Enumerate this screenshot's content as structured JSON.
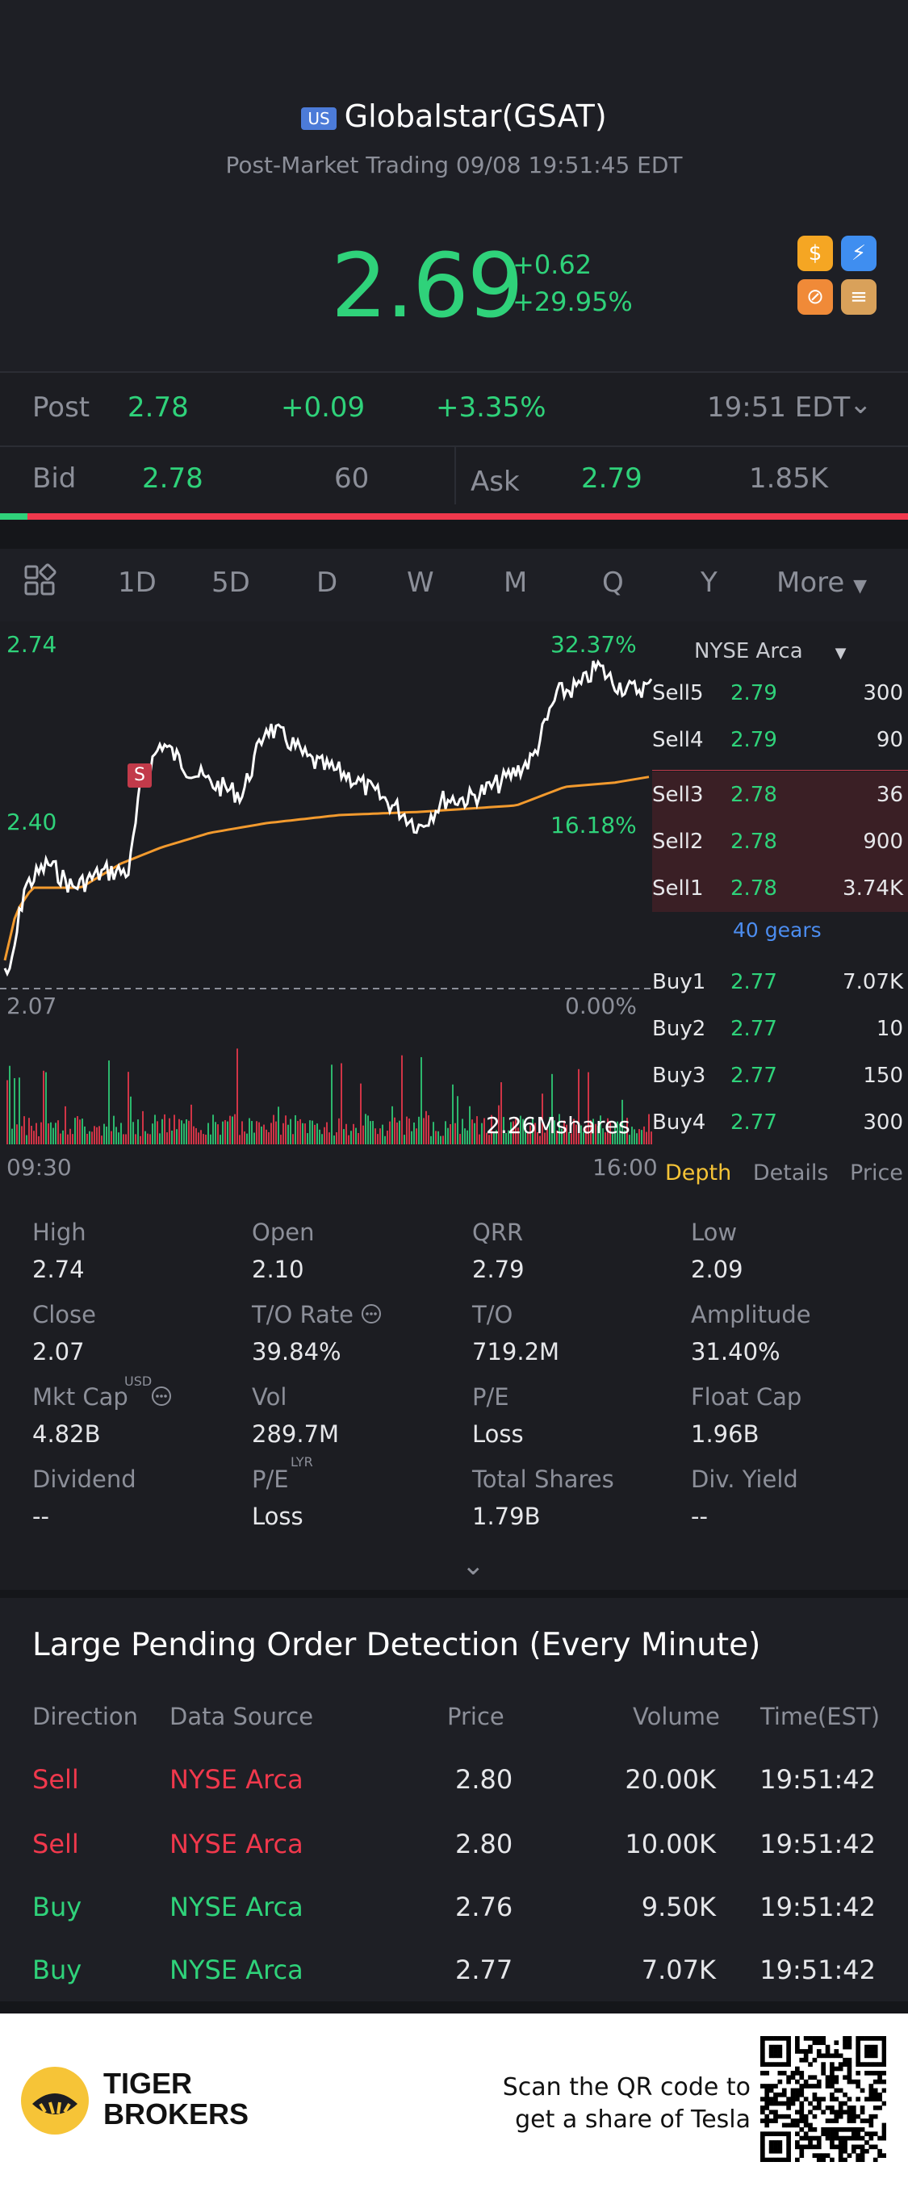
{
  "header": {
    "market_tag": "US",
    "title": "Globalstar(GSAT)",
    "subtitle": "Post-Market Trading 09/08 19:51:45 EDT",
    "price": "2.69",
    "change": "+0.62",
    "change_pct": "+29.95%",
    "badges": [
      {
        "icon": "dollar-icon",
        "glyph": "$",
        "color": "#f5a623"
      },
      {
        "icon": "lightning-icon",
        "glyph": "⚡",
        "color": "#3f8ef0"
      },
      {
        "icon": "no-short-icon",
        "glyph": "⊘",
        "color": "#f08a38"
      },
      {
        "icon": "layers-icon",
        "glyph": "≡",
        "color": "#d9a15a"
      }
    ]
  },
  "post": {
    "label": "Post",
    "price": "2.78",
    "change": "+0.09",
    "change_pct": "+3.35%",
    "time": "19:51 EDT"
  },
  "bidask": {
    "bid_label": "Bid",
    "bid_price": "2.78",
    "bid_size": "60",
    "ask_label": "Ask",
    "ask_price": "2.79",
    "ask_size": "1.85K",
    "bid_share": 0.03
  },
  "tabs": {
    "items": [
      "1D",
      "5D",
      "D",
      "W",
      "M",
      "Q",
      "Y"
    ],
    "active": "1D",
    "more": "More"
  },
  "chart_data": {
    "type": "line",
    "y_high": "2.74",
    "y_mid": "2.40",
    "y_low": "2.07",
    "pct_high": "32.37%",
    "pct_mid": "16.18%",
    "pct_low": "0.00%",
    "x_start": "09:30",
    "x_end": "16:00",
    "volume_label": "2.26Mshares",
    "trade_marker": "S",
    "ylim": [
      2.07,
      2.74
    ]
  },
  "book": {
    "exchange": "NYSE Arca",
    "sells": [
      {
        "label": "Sell5",
        "price": "2.79",
        "size": "300"
      },
      {
        "label": "Sell4",
        "price": "2.79",
        "size": "90"
      },
      {
        "label": "Sell3",
        "price": "2.78",
        "size": "36"
      },
      {
        "label": "Sell2",
        "price": "2.78",
        "size": "900"
      },
      {
        "label": "Sell1",
        "price": "2.78",
        "size": "3.74K"
      }
    ],
    "gears": "40 gears",
    "buys": [
      {
        "label": "Buy1",
        "price": "2.77",
        "size": "7.07K"
      },
      {
        "label": "Buy2",
        "price": "2.77",
        "size": "10"
      },
      {
        "label": "Buy3",
        "price": "2.77",
        "size": "150"
      },
      {
        "label": "Buy4",
        "price": "2.77",
        "size": "300"
      }
    ],
    "tabs": [
      "Depth",
      "Details",
      "Price"
    ]
  },
  "stats": [
    {
      "label": "High",
      "value": "2.74"
    },
    {
      "label": "Open",
      "value": "2.10"
    },
    {
      "label": "QRR",
      "value": "2.79"
    },
    {
      "label": "Low",
      "value": "2.09"
    },
    {
      "label": "Close",
      "value": "2.07"
    },
    {
      "label": "T/O Rate",
      "value": "39.84%"
    },
    {
      "label": "T/O",
      "value": "719.2M"
    },
    {
      "label": "Amplitude",
      "value": "31.40%"
    },
    {
      "label": "Mkt Cap",
      "value": "4.82B"
    },
    {
      "label": "Vol",
      "value": "289.7M"
    },
    {
      "label": "P/E",
      "value": "Loss"
    },
    {
      "label": "Float Cap",
      "value": "1.96B"
    },
    {
      "label": "Dividend",
      "value": "--"
    },
    {
      "label": "P/E",
      "value": "Loss"
    },
    {
      "label": "Total Shares",
      "value": "1.79B"
    },
    {
      "label": "Div. Yield",
      "value": "--"
    }
  ],
  "stat_sup": {
    "mkt_cap": "USD",
    "pe": "LYR"
  },
  "pending": {
    "title": "Large Pending Order Detection (Every Minute)",
    "headers": [
      "Direction",
      "Data Source",
      "Price",
      "Volume",
      "Time(EST)"
    ],
    "rows": [
      {
        "dir": "Sell",
        "source": "NYSE Arca",
        "price": "2.80",
        "volume": "20.00K",
        "time": "19:51:42"
      },
      {
        "dir": "Sell",
        "source": "NYSE Arca",
        "price": "2.80",
        "volume": "10.00K",
        "time": "19:51:42"
      },
      {
        "dir": "Buy",
        "source": "NYSE Arca",
        "price": "2.76",
        "volume": "9.50K",
        "time": "19:51:42"
      },
      {
        "dir": "Buy",
        "source": "NYSE Arca",
        "price": "2.77",
        "volume": "7.07K",
        "time": "19:51:42"
      }
    ]
  },
  "footer": {
    "brand_line1": "TIGER",
    "brand_line2": "BROKERS",
    "promo_line1": "Scan the QR code to",
    "promo_line2": "get a share of Tesla"
  }
}
